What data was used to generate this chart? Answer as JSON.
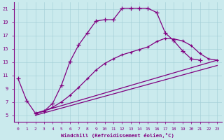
{
  "background_color": "#caeaed",
  "line_color": "#800080",
  "xlabel": "Windchill (Refroidissement éolien,°C)",
  "xlim": [
    -0.5,
    23.5
  ],
  "ylim": [
    4.0,
    22.0
  ],
  "xticks": [
    0,
    1,
    2,
    3,
    4,
    5,
    6,
    7,
    8,
    9,
    10,
    11,
    12,
    13,
    14,
    15,
    16,
    17,
    18,
    19,
    20,
    21,
    22,
    23
  ],
  "yticks": [
    5,
    7,
    9,
    11,
    13,
    15,
    17,
    19,
    21
  ],
  "curve_main_x": [
    0,
    1,
    2,
    3,
    4,
    5,
    6,
    7,
    8,
    9,
    10,
    11,
    12,
    13,
    14,
    15,
    16,
    17,
    18,
    19,
    20,
    21
  ],
  "curve_main_y": [
    10.5,
    7.2,
    5.3,
    5.6,
    6.8,
    9.5,
    13.1,
    15.6,
    17.4,
    19.2,
    19.4,
    19.4,
    21.1,
    21.1,
    21.1,
    21.1,
    20.5,
    17.4,
    16.2,
    14.7,
    13.5,
    13.3
  ],
  "curve2_x": [
    2,
    3,
    4,
    5,
    6,
    7,
    8,
    9,
    10,
    11,
    12,
    13,
    14,
    15,
    16,
    17,
    18,
    19,
    20,
    21,
    22,
    23
  ],
  "curve2_y": [
    5.3,
    5.6,
    6.2,
    7.0,
    8.0,
    9.2,
    10.5,
    11.8,
    12.8,
    13.5,
    14.1,
    14.5,
    14.9,
    15.3,
    16.1,
    16.6,
    16.5,
    16.2,
    15.5,
    14.3,
    13.5,
    13.3
  ],
  "curve3_x": [
    2,
    23
  ],
  "curve3_y": [
    5.3,
    13.3
  ],
  "curve4_x": [
    2,
    23
  ],
  "curve4_y": [
    5.0,
    12.5
  ]
}
